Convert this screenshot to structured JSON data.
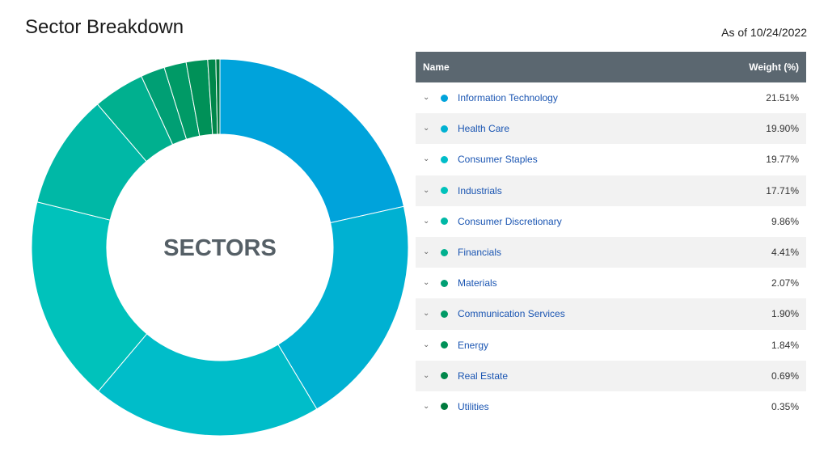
{
  "page": {
    "title": "Sector Breakdown",
    "as_of": "As of 10/24/2022"
  },
  "table": {
    "col_name": "Name",
    "col_weight": "Weight (%)"
  },
  "chart_data": {
    "type": "pie",
    "center_label": "SECTORS",
    "categories": [
      "Information Technology",
      "Health Care",
      "Consumer Staples",
      "Industrials",
      "Consumer Discretionary",
      "Financials",
      "Materials",
      "Communication Services",
      "Energy",
      "Real Estate",
      "Utilities"
    ],
    "values": [
      21.51,
      19.9,
      19.77,
      17.71,
      9.86,
      4.41,
      2.07,
      1.9,
      1.84,
      0.69,
      0.35
    ],
    "labels": [
      "21.51%",
      "19.90%",
      "19.77%",
      "17.71%",
      "9.86%",
      "4.41%",
      "2.07%",
      "1.90%",
      "1.84%",
      "0.69%",
      "0.35%"
    ],
    "colors": [
      "#00a3db",
      "#00b1d2",
      "#00bdc9",
      "#00c2bb",
      "#00b8a6",
      "#00b08f",
      "#009f74",
      "#009a66",
      "#009158",
      "#00874a",
      "#007a3d"
    ]
  }
}
